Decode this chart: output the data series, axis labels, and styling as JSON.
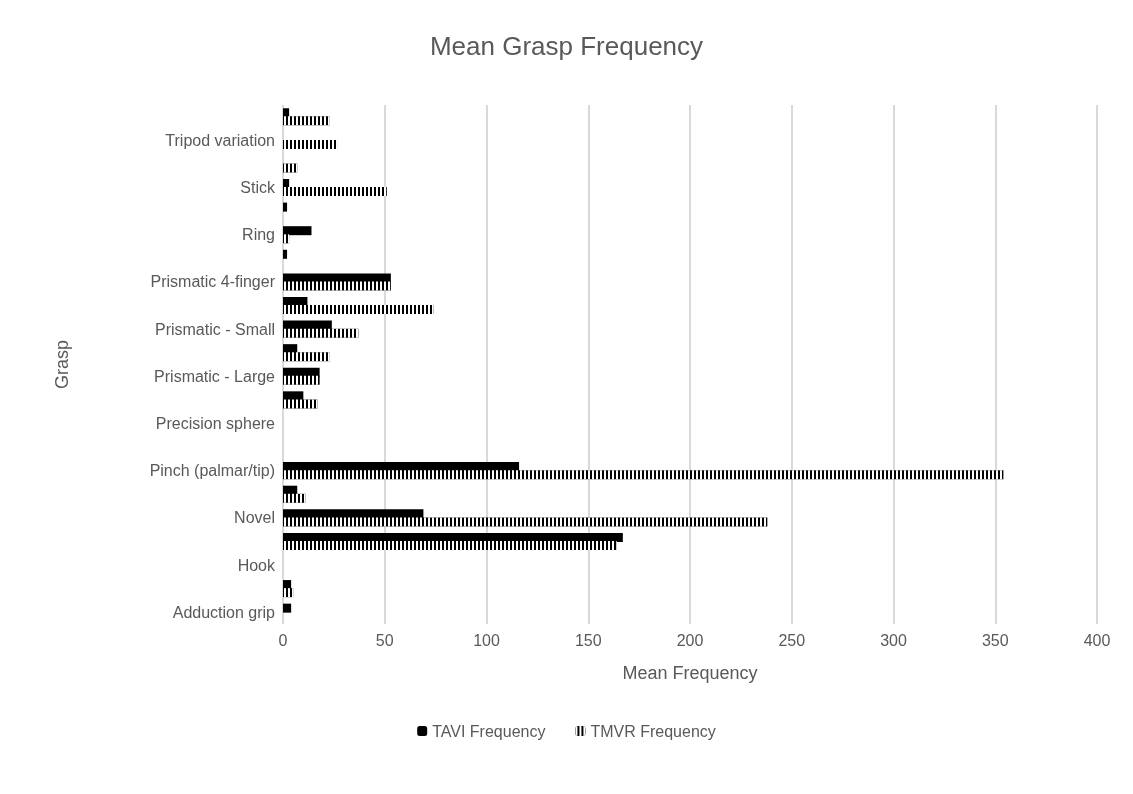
{
  "chart_data": {
    "type": "bar",
    "orientation": "horizontal",
    "title": "Mean Grasp Frequency",
    "xlabel": "Mean Frequency",
    "ylabel": "Grasp",
    "categories": [
      null,
      "Tripod variation",
      null,
      "Stick",
      null,
      "Ring",
      null,
      "Prismatic 4-finger",
      null,
      "Prismatic - Small",
      null,
      "Prismatic - Large",
      null,
      "Precision sphere",
      null,
      "Pinch (palmar/tip)",
      null,
      "Novel",
      null,
      "Hook",
      null,
      "Adduction grip"
    ],
    "series": [
      {
        "name": "TAVI Frequency",
        "color": "#000000",
        "values": [
          3,
          0,
          0,
          3,
          2,
          14,
          2,
          53,
          12,
          24,
          7,
          18,
          10,
          0,
          0,
          116,
          7,
          69,
          167,
          0,
          4,
          4
        ]
      },
      {
        "name": "TMVR Frequency",
        "color": "#000000",
        "values": [
          23,
          27,
          7,
          51,
          0,
          3,
          0,
          53,
          74,
          37,
          23,
          18,
          17,
          0,
          0,
          354,
          11,
          238,
          164,
          0,
          5,
          0
        ]
      }
    ],
    "xlim": [
      0,
      400
    ],
    "xticks": [
      0,
      50,
      100,
      150,
      200,
      250,
      300,
      350,
      400
    ],
    "grid": "x",
    "legend": "bottom"
  }
}
